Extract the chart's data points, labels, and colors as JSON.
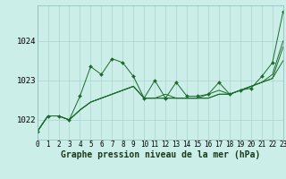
{
  "xlabel": "Graphe pression niveau de la mer (hPa)",
  "background_color": "#cceee8",
  "grid_color": "#aad4ce",
  "line_color": "#1a6b2a",
  "xlim": [
    0,
    23
  ],
  "ylim": [
    1021.5,
    1024.9
  ],
  "yticks": [
    1022,
    1023,
    1024
  ],
  "xticks": [
    0,
    1,
    2,
    3,
    4,
    5,
    6,
    7,
    8,
    9,
    10,
    11,
    12,
    13,
    14,
    15,
    16,
    17,
    18,
    19,
    20,
    21,
    22,
    23
  ],
  "series": [
    [
      1021.7,
      1022.1,
      1022.1,
      1022.0,
      1022.6,
      1023.35,
      1023.15,
      1023.55,
      1023.45,
      1023.1,
      1022.55,
      1023.0,
      1022.55,
      1022.95,
      1022.6,
      1022.6,
      1022.65,
      1022.95,
      1022.65,
      1022.75,
      1022.8,
      1023.1,
      1023.45,
      1024.75
    ],
    [
      1021.7,
      1022.1,
      1022.1,
      1022.0,
      1022.25,
      1022.45,
      1022.55,
      1022.65,
      1022.75,
      1022.85,
      1022.55,
      1022.55,
      1022.65,
      1022.55,
      1022.55,
      1022.55,
      1022.65,
      1022.75,
      1022.65,
      1022.75,
      1022.85,
      1022.95,
      1023.15,
      1024.0
    ],
    [
      1021.7,
      1022.1,
      1022.1,
      1022.0,
      1022.25,
      1022.45,
      1022.55,
      1022.65,
      1022.75,
      1022.85,
      1022.55,
      1022.55,
      1022.55,
      1022.55,
      1022.55,
      1022.55,
      1022.55,
      1022.65,
      1022.65,
      1022.75,
      1022.85,
      1022.95,
      1023.05,
      1023.85
    ],
    [
      1021.7,
      1022.1,
      1022.1,
      1022.0,
      1022.25,
      1022.45,
      1022.55,
      1022.65,
      1022.75,
      1022.85,
      1022.55,
      1022.55,
      1022.55,
      1022.55,
      1022.55,
      1022.55,
      1022.55,
      1022.65,
      1022.65,
      1022.75,
      1022.85,
      1022.95,
      1023.05,
      1023.5
    ]
  ],
  "fontsize_xlabel": 7,
  "fontsize_yticks": 6.5,
  "fontsize_xticks": 5.5,
  "spine_color": "#88bbbb"
}
